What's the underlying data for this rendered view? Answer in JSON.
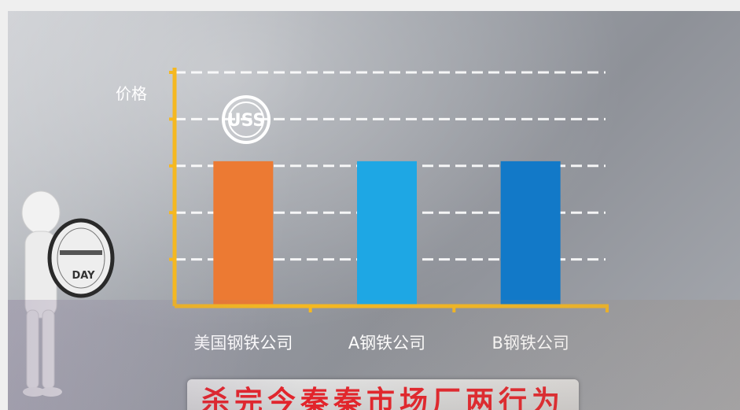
{
  "chart_data": {
    "type": "bar",
    "ylabel": "价格",
    "categories": [
      "美国钢铁公司",
      "A钢铁公司",
      "B钢铁公司"
    ],
    "values": [
      3.1,
      3.1,
      3.1
    ],
    "ylim": [
      0,
      5
    ],
    "yticks": [
      1,
      2,
      3,
      4,
      5
    ],
    "grid": true,
    "colors": [
      "#ec7a33",
      "#1ea7e4",
      "#1279c8"
    ],
    "axis_color": "#f5b820"
  },
  "annotations": {
    "logo_text": "USS",
    "badge_lines": [
      "",
      "",
      "DAY"
    ]
  },
  "banner": {
    "text": "杀完今秦秦市场厂两行为"
  }
}
